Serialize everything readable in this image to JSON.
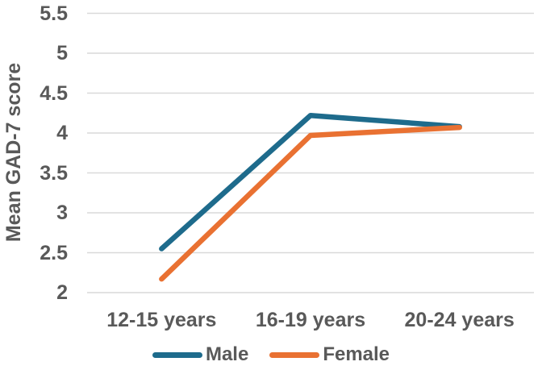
{
  "chart_data": {
    "type": "line",
    "categories": [
      "12-15 years",
      "16-19 years",
      "20-24 years"
    ],
    "series": [
      {
        "name": "Male",
        "color": "#1E6B8C",
        "values": [
          2.55,
          4.22,
          4.08
        ]
      },
      {
        "name": "Female",
        "color": "#E97132",
        "values": [
          2.17,
          3.97,
          4.07
        ]
      }
    ],
    "title": "",
    "xlabel": "",
    "ylabel": "Mean GAD-7 score",
    "ylim": [
      2,
      5.5
    ],
    "ytick_step": 0.5,
    "ytick_labels": [
      "2",
      "2.5",
      "3",
      "3.5",
      "4",
      "4.5",
      "5",
      "5.5"
    ],
    "grid": true,
    "legend_position": "bottom"
  },
  "colors": {
    "text": "#595959",
    "gridline": "#D9D9D9",
    "background": "#FFFFFF"
  }
}
